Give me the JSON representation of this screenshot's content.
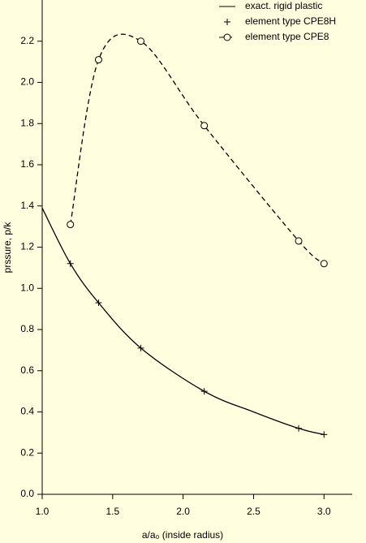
{
  "chart_data": {
    "type": "line",
    "x_label": "a/a₀ (inside radius)",
    "y_label": "prssure, p/k",
    "xlim": [
      1.0,
      3.2
    ],
    "ylim": [
      0,
      2.4
    ],
    "xticks": [
      {
        "value": 1,
        "label": "1.0"
      },
      1.5,
      {
        "value": 2,
        "label": "2.0"
      },
      2.5,
      {
        "value": 3,
        "label": "3.0"
      }
    ],
    "yticks": [
      {
        "value": 0,
        "label": "0.0"
      },
      0.2,
      0.4,
      0.6,
      0.8,
      {
        "value": 1,
        "label": "1.0"
      },
      1.2,
      1.4,
      1.6,
      1.8,
      {
        "value": 2,
        "label": "2.0"
      },
      2.2
    ],
    "legend": "upper right",
    "series": [
      {
        "name": "exact. rigid plastic",
        "color": "#000000",
        "line": "solid",
        "marker": "none",
        "x": [
          1.0,
          1.2,
          1.4,
          1.7,
          2.15,
          2.5,
          2.82,
          3.0
        ],
        "values": [
          1.39,
          1.12,
          0.93,
          0.71,
          0.5,
          0.4,
          0.32,
          0.29
        ]
      },
      {
        "name": "element type CPE8H",
        "color": "#000000",
        "line": "none",
        "marker": "plus",
        "x": [
          1.2,
          1.4,
          1.7,
          2.15,
          2.82,
          3.0
        ],
        "values": [
          1.12,
          0.93,
          0.71,
          0.5,
          0.32,
          0.29
        ]
      },
      {
        "name": "element type CPE8",
        "color": "#000000",
        "line": "dashed",
        "marker": "circle",
        "x": [
          1.2,
          1.4,
          1.7,
          2.15,
          2.82,
          3.0
        ],
        "values": [
          1.31,
          2.11,
          2.2,
          1.79,
          1.23,
          1.12
        ]
      }
    ]
  }
}
